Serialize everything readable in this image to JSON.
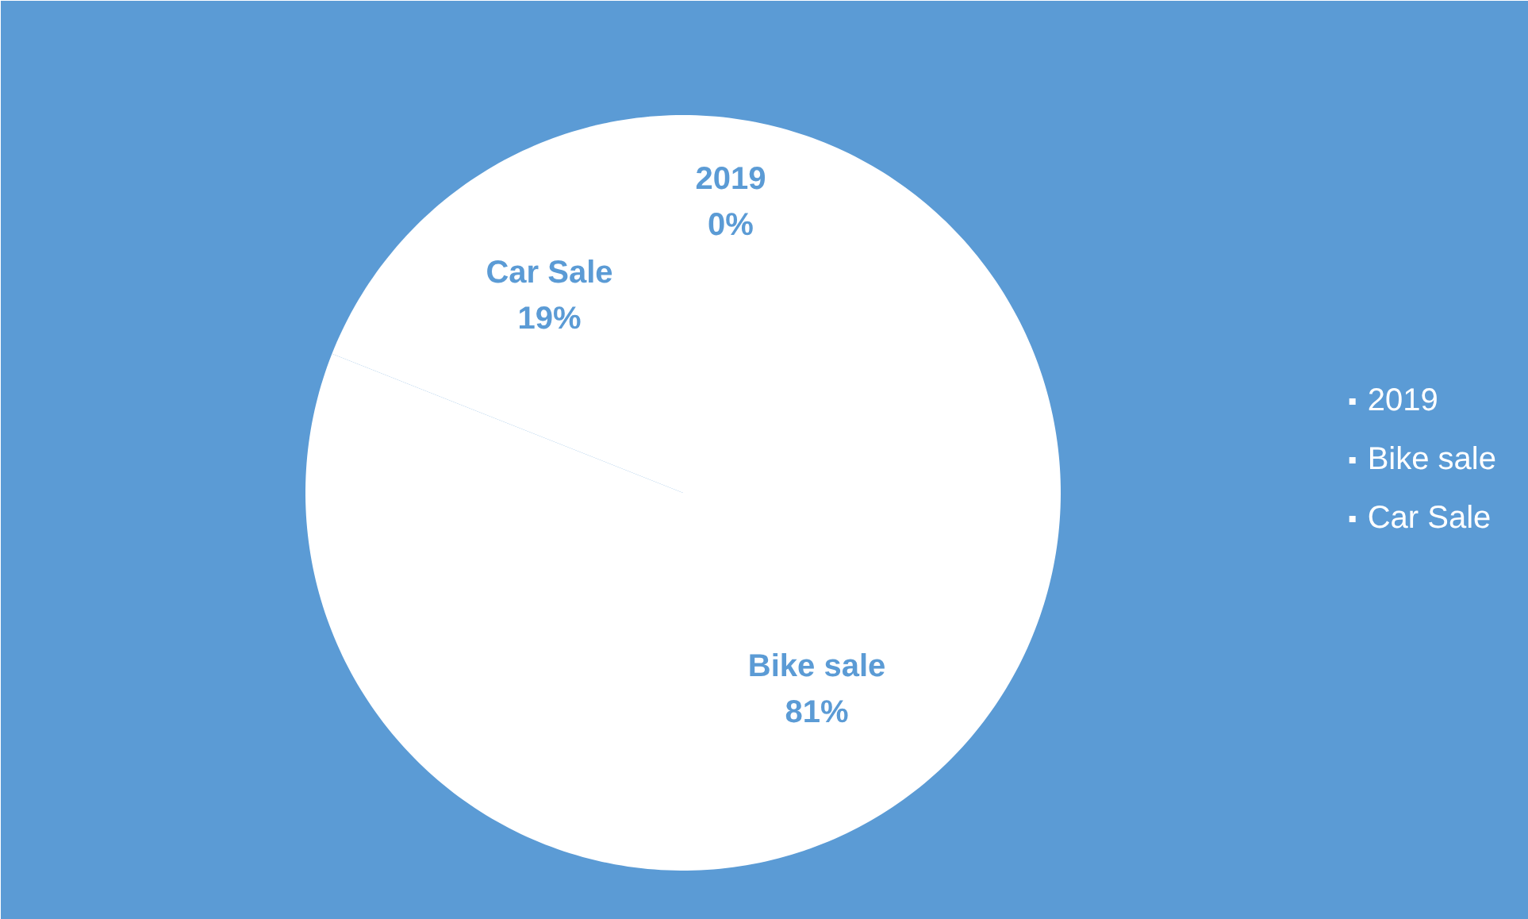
{
  "chart_data": {
    "type": "pie",
    "categories": [
      "2019",
      "Bike sale",
      "Car Sale"
    ],
    "values": [
      0,
      81,
      19
    ],
    "value_labels": [
      "0%",
      "81%",
      "19%"
    ],
    "colors": [
      "#ffffff",
      "#ffffff",
      "#ffffff"
    ],
    "legend": "right"
  }
}
